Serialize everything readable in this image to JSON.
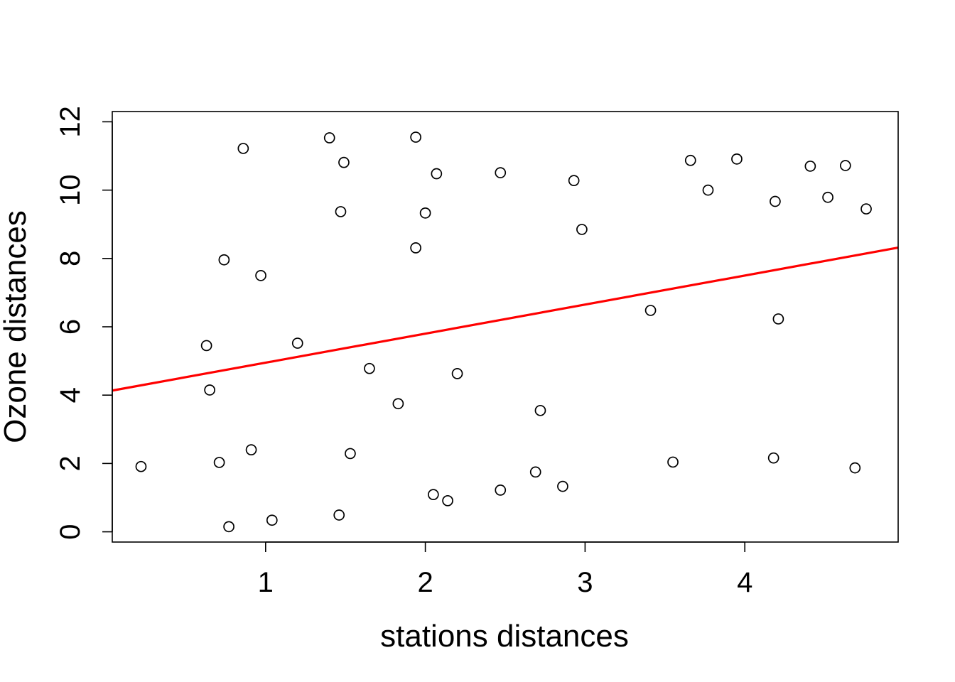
{
  "chart_data": {
    "type": "scatter",
    "title": "",
    "xlabel": "stations distances",
    "ylabel": "Ozone distances",
    "xlim": [
      0.04,
      4.96
    ],
    "ylim": [
      -0.3,
      12.3
    ],
    "x_ticks": [
      1,
      2,
      3,
      4
    ],
    "x_tick_labels": [
      "1",
      "2",
      "3",
      "4"
    ],
    "y_ticks": [
      0,
      2,
      4,
      6,
      8,
      10,
      12
    ],
    "y_tick_labels": [
      "0",
      "2",
      "4",
      "6",
      "8",
      "10",
      "12"
    ],
    "grid": false,
    "legend": "none",
    "points_color": "#000000",
    "regression_color": "#ff0000",
    "regression_line": {
      "intercept": 4.1,
      "slope": 0.85
    },
    "points": [
      {
        "x": 0.22,
        "y": 1.91
      },
      {
        "x": 0.63,
        "y": 5.45
      },
      {
        "x": 0.65,
        "y": 4.15
      },
      {
        "x": 0.71,
        "y": 2.03
      },
      {
        "x": 0.74,
        "y": 7.96
      },
      {
        "x": 0.77,
        "y": 0.15
      },
      {
        "x": 0.86,
        "y": 11.22
      },
      {
        "x": 0.91,
        "y": 2.4
      },
      {
        "x": 0.97,
        "y": 7.5
      },
      {
        "x": 1.04,
        "y": 0.34
      },
      {
        "x": 1.2,
        "y": 5.52
      },
      {
        "x": 1.4,
        "y": 11.53
      },
      {
        "x": 1.46,
        "y": 0.49
      },
      {
        "x": 1.47,
        "y": 9.37
      },
      {
        "x": 1.49,
        "y": 10.81
      },
      {
        "x": 1.53,
        "y": 2.29
      },
      {
        "x": 1.65,
        "y": 4.78
      },
      {
        "x": 1.83,
        "y": 3.75
      },
      {
        "x": 1.94,
        "y": 8.31
      },
      {
        "x": 1.94,
        "y": 11.55
      },
      {
        "x": 2.0,
        "y": 9.33
      },
      {
        "x": 2.05,
        "y": 1.09
      },
      {
        "x": 2.07,
        "y": 10.48
      },
      {
        "x": 2.14,
        "y": 0.91
      },
      {
        "x": 2.2,
        "y": 4.63
      },
      {
        "x": 2.47,
        "y": 10.51
      },
      {
        "x": 2.47,
        "y": 1.22
      },
      {
        "x": 2.69,
        "y": 1.75
      },
      {
        "x": 2.72,
        "y": 3.55
      },
      {
        "x": 2.86,
        "y": 1.33
      },
      {
        "x": 2.93,
        "y": 10.28
      },
      {
        "x": 2.98,
        "y": 8.85
      },
      {
        "x": 3.41,
        "y": 6.48
      },
      {
        "x": 3.55,
        "y": 2.04
      },
      {
        "x": 3.66,
        "y": 10.87
      },
      {
        "x": 3.77,
        "y": 10.0
      },
      {
        "x": 3.95,
        "y": 10.91
      },
      {
        "x": 4.18,
        "y": 2.16
      },
      {
        "x": 4.19,
        "y": 9.67
      },
      {
        "x": 4.21,
        "y": 6.23
      },
      {
        "x": 4.41,
        "y": 10.7
      },
      {
        "x": 4.52,
        "y": 9.79
      },
      {
        "x": 4.63,
        "y": 10.72
      },
      {
        "x": 4.69,
        "y": 1.87
      },
      {
        "x": 4.76,
        "y": 9.45
      }
    ]
  }
}
